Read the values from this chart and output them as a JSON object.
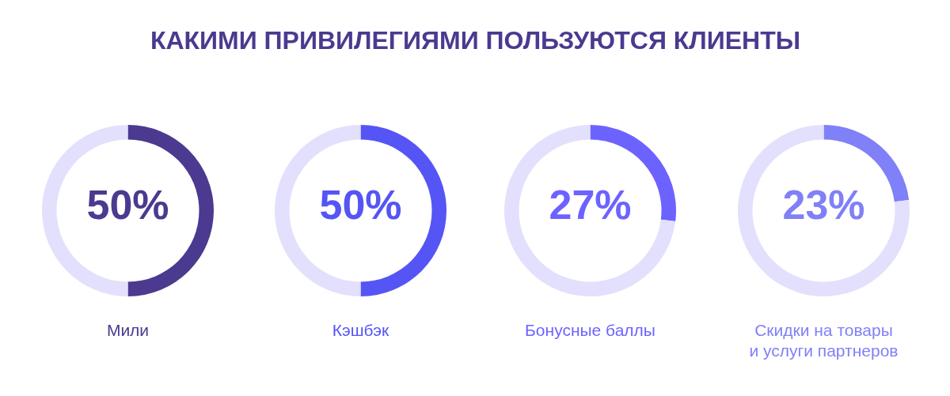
{
  "chart_data": [
    {
      "type": "other",
      "title": "КАКИМИ ПРИВИЛЕГИЯМИ ПОЛЬЗУЮТСЯ КЛИЕНТЫ"
    },
    {
      "type": "donut",
      "title": "Мили",
      "values": [
        50,
        50
      ],
      "colors": [
        "#4b3a8f",
        "#e3e0fd"
      ],
      "annotations": [
        "50%"
      ]
    },
    {
      "type": "donut",
      "title": "Кэшбэк",
      "values": [
        50,
        50
      ],
      "colors": [
        "#5555f5",
        "#e3e0fd"
      ],
      "annotations": [
        "50%"
      ]
    },
    {
      "type": "donut",
      "title": "Бонусные баллы",
      "values": [
        27,
        73
      ],
      "colors": [
        "#6c63ff",
        "#e3e0fd"
      ],
      "annotations": [
        "27%"
      ]
    },
    {
      "type": "donut",
      "title": "Скидки на товары и услуги партнеров",
      "values": [
        23,
        77
      ],
      "colors": [
        "#8080f8",
        "#e3e0fd"
      ],
      "annotations": [
        "23%"
      ]
    }
  ]
}
